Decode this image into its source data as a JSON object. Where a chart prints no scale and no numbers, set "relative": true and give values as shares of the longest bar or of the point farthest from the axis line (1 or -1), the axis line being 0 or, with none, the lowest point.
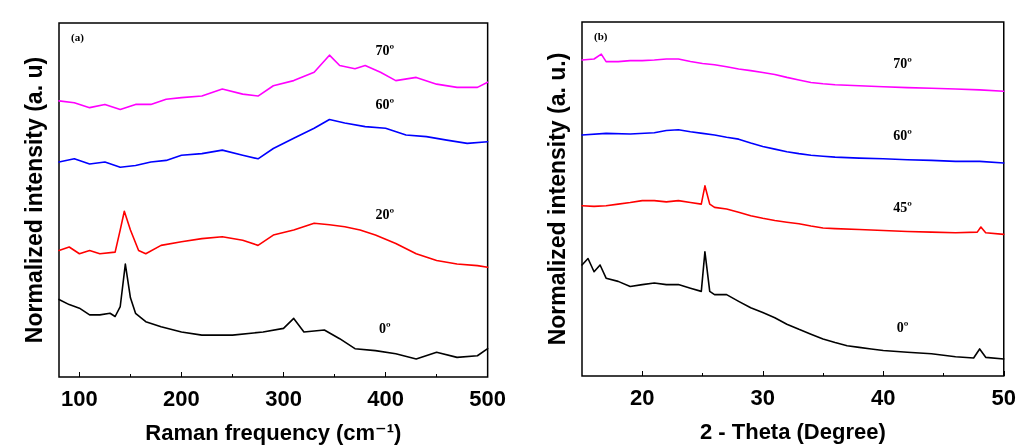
{
  "chart_data": [
    {
      "type": "line",
      "relative": true,
      "xlabel": "Raman frequency (cm⁻¹)",
      "ylabel": "Normalized intensity (a. u)",
      "xlim": [
        80,
        500
      ],
      "xticks": [
        100,
        200,
        300,
        400,
        500
      ],
      "marker": "none",
      "line_style": "solid",
      "grid": false,
      "tick_labels": "x",
      "annotations": [
        "(a)"
      ],
      "series": [
        {
          "name": "0º",
          "color": "#000000",
          "x": [
            80,
            90,
            100,
            110,
            120,
            130,
            135,
            140,
            145,
            150,
            155,
            165,
            180,
            200,
            220,
            250,
            280,
            300,
            310,
            320,
            340,
            355,
            370,
            390,
            410,
            430,
            450,
            470,
            490,
            500
          ],
          "values": [
            0.241,
            0.225,
            0.214,
            0.193,
            0.193,
            0.198,
            0.188,
            0.219,
            0.351,
            0.246,
            0.198,
            0.172,
            0.156,
            0.14,
            0.13,
            0.13,
            0.14,
            0.151,
            0.182,
            0.14,
            0.146,
            0.119,
            0.088,
            0.082,
            0.072,
            0.056,
            0.077,
            0.061,
            0.066,
            0.088
          ]
        },
        {
          "name": "20º",
          "color": "#ff0000",
          "x": [
            80,
            90,
            100,
            110,
            120,
            135,
            140,
            144,
            150,
            158,
            165,
            180,
            200,
            220,
            240,
            260,
            275,
            290,
            310,
            330,
            345,
            360,
            375,
            390,
            410,
            430,
            450,
            470,
            490,
            500
          ],
          "values": [
            0.393,
            0.404,
            0.383,
            0.393,
            0.383,
            0.388,
            0.457,
            0.515,
            0.457,
            0.393,
            0.383,
            0.409,
            0.42,
            0.43,
            0.436,
            0.425,
            0.409,
            0.441,
            0.457,
            0.478,
            0.473,
            0.467,
            0.457,
            0.441,
            0.415,
            0.383,
            0.362,
            0.351,
            0.346,
            0.341
          ]
        },
        {
          "name": "60º",
          "color": "#0000ff",
          "x": [
            80,
            95,
            110,
            125,
            140,
            155,
            170,
            185,
            200,
            220,
            240,
            260,
            275,
            290,
            310,
            330,
            345,
            360,
            380,
            400,
            420,
            440,
            460,
            480,
            500
          ],
          "values": [
            0.668,
            0.678,
            0.662,
            0.668,
            0.652,
            0.657,
            0.668,
            0.673,
            0.689,
            0.694,
            0.705,
            0.689,
            0.678,
            0.71,
            0.742,
            0.773,
            0.8,
            0.789,
            0.778,
            0.773,
            0.752,
            0.747,
            0.736,
            0.726,
            0.731
          ]
        },
        {
          "name": "70º",
          "color": "#ff00ff",
          "x": [
            80,
            95,
            110,
            125,
            140,
            155,
            170,
            185,
            200,
            220,
            240,
            260,
            275,
            290,
            310,
            330,
            345,
            355,
            370,
            380,
            395,
            410,
            430,
            450,
            470,
            490,
            500
          ],
          "values": [
            0.858,
            0.852,
            0.837,
            0.847,
            0.831,
            0.847,
            0.847,
            0.863,
            0.868,
            0.873,
            0.895,
            0.879,
            0.873,
            0.905,
            0.921,
            0.947,
            1.0,
            0.968,
            0.958,
            0.968,
            0.947,
            0.921,
            0.931,
            0.91,
            0.9,
            0.9,
            0.916
          ]
        }
      ]
    },
    {
      "type": "line",
      "relative": true,
      "xlabel": "2 - Theta (Degree)",
      "ylabel": "Normalized intensity (a. u.)",
      "xlim": [
        15,
        50
      ],
      "xticks": [
        20,
        30,
        40,
        50
      ],
      "marker": "none",
      "line_style": "solid",
      "grid": false,
      "tick_labels": "x",
      "annotations": [
        "(b)"
      ],
      "series": [
        {
          "name": "0º",
          "color": "#000000",
          "x": [
            15,
            15.5,
            16,
            16.5,
            17,
            18,
            19,
            20,
            21,
            22,
            23,
            24,
            24.9,
            25.2,
            25.6,
            26,
            27,
            28,
            29,
            30,
            31,
            32,
            33,
            34,
            35,
            36,
            37,
            38,
            39,
            40,
            42,
            44,
            46,
            47.5,
            48,
            48.5,
            50
          ],
          "values": [
            0.345,
            0.365,
            0.324,
            0.345,
            0.304,
            0.294,
            0.278,
            0.284,
            0.289,
            0.284,
            0.284,
            0.273,
            0.263,
            0.386,
            0.263,
            0.253,
            0.253,
            0.232,
            0.212,
            0.197,
            0.181,
            0.161,
            0.145,
            0.13,
            0.115,
            0.104,
            0.094,
            0.089,
            0.084,
            0.079,
            0.074,
            0.069,
            0.06,
            0.056,
            0.084,
            0.058,
            0.053
          ]
        },
        {
          "name": "45º",
          "color": "#ff0000",
          "x": [
            15,
            16,
            17,
            18,
            19,
            20,
            21,
            22,
            23,
            24,
            24.9,
            25.2,
            25.6,
            26,
            27,
            28,
            29,
            30,
            31,
            32,
            33,
            34,
            35,
            36,
            38,
            40,
            42,
            44,
            46,
            47.8,
            48.1,
            48.5,
            50
          ],
          "values": [
            0.529,
            0.527,
            0.529,
            0.534,
            0.539,
            0.545,
            0.545,
            0.541,
            0.545,
            0.539,
            0.534,
            0.591,
            0.534,
            0.524,
            0.519,
            0.509,
            0.498,
            0.49,
            0.483,
            0.478,
            0.473,
            0.466,
            0.46,
            0.458,
            0.455,
            0.452,
            0.449,
            0.447,
            0.445,
            0.447,
            0.463,
            0.445,
            0.44
          ]
        },
        {
          "name": "60º",
          "color": "#0000ff",
          "x": [
            15,
            17,
            19,
            21,
            22,
            23,
            24,
            25,
            26,
            27,
            28,
            29,
            30,
            31,
            32,
            33,
            34,
            35,
            36,
            38,
            40,
            42,
            44,
            46,
            48,
            50
          ],
          "values": [
            0.749,
            0.754,
            0.752,
            0.756,
            0.763,
            0.765,
            0.759,
            0.754,
            0.749,
            0.742,
            0.736,
            0.724,
            0.713,
            0.705,
            0.697,
            0.691,
            0.686,
            0.683,
            0.68,
            0.677,
            0.675,
            0.672,
            0.67,
            0.667,
            0.667,
            0.662
          ]
        },
        {
          "name": "70º",
          "color": "#ff00ff",
          "x": [
            15,
            16,
            16.6,
            17,
            18,
            19,
            20,
            21,
            22,
            23,
            24,
            25,
            26,
            27,
            28,
            29,
            30,
            31,
            32,
            33,
            34,
            35,
            36,
            38,
            40,
            42,
            44,
            46,
            48,
            50
          ],
          "values": [
            0.982,
            0.985,
            1.0,
            0.977,
            0.977,
            0.98,
            0.98,
            0.982,
            0.985,
            0.985,
            0.977,
            0.971,
            0.967,
            0.961,
            0.954,
            0.949,
            0.943,
            0.937,
            0.928,
            0.92,
            0.912,
            0.908,
            0.905,
            0.902,
            0.899,
            0.896,
            0.894,
            0.892,
            0.889,
            0.885
          ]
        }
      ]
    }
  ]
}
